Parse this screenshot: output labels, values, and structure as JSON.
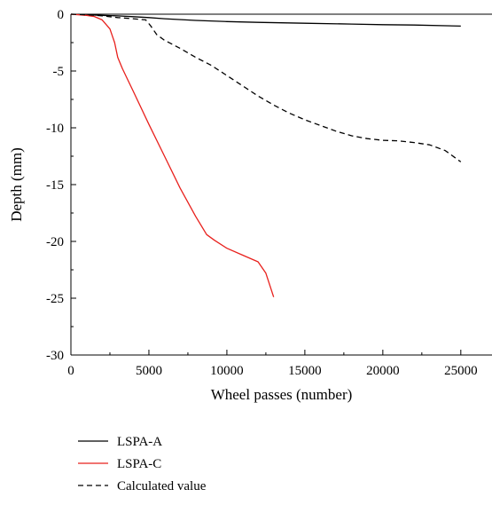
{
  "chart_data": {
    "type": "line",
    "title": "",
    "xlabel": "Wheel passes (number)",
    "ylabel": "Depth (mm)",
    "xlim": [
      0,
      27000
    ],
    "ylim": [
      -30,
      0
    ],
    "x_ticks": [
      0,
      5000,
      10000,
      15000,
      20000,
      25000
    ],
    "y_ticks": [
      0,
      -5,
      -10,
      -15,
      -20,
      -25,
      -30
    ],
    "grid": false,
    "legend_position": "below plot, left",
    "series": [
      {
        "name": "LSPA-A",
        "color": "#000000",
        "dash": "solid",
        "points": [
          [
            0,
            0
          ],
          [
            1000,
            -0.05
          ],
          [
            2000,
            -0.1
          ],
          [
            3000,
            -0.15
          ],
          [
            4000,
            -0.22
          ],
          [
            5000,
            -0.3
          ],
          [
            6000,
            -0.4
          ],
          [
            8000,
            -0.55
          ],
          [
            10000,
            -0.65
          ],
          [
            12000,
            -0.72
          ],
          [
            15000,
            -0.8
          ],
          [
            18000,
            -0.87
          ],
          [
            20000,
            -0.92
          ],
          [
            22000,
            -0.95
          ],
          [
            25000,
            -1.05
          ]
        ]
      },
      {
        "name": "LSPA-C",
        "color": "#e8201c",
        "dash": "solid",
        "points": [
          [
            0,
            0
          ],
          [
            1000,
            -0.1
          ],
          [
            1500,
            -0.2
          ],
          [
            2000,
            -0.5
          ],
          [
            2500,
            -1.3
          ],
          [
            2800,
            -2.5
          ],
          [
            3000,
            -3.8
          ],
          [
            3300,
            -4.8
          ],
          [
            4000,
            -6.8
          ],
          [
            5000,
            -9.7
          ],
          [
            6000,
            -12.5
          ],
          [
            7000,
            -15.3
          ],
          [
            8000,
            -17.8
          ],
          [
            8700,
            -19.4
          ],
          [
            9200,
            -19.9
          ],
          [
            10000,
            -20.6
          ],
          [
            11000,
            -21.2
          ],
          [
            12000,
            -21.8
          ],
          [
            12500,
            -22.8
          ],
          [
            13000,
            -24.9
          ]
        ]
      },
      {
        "name": "Calculated value",
        "color": "#000000",
        "dash": "dashed",
        "points": [
          [
            0,
            0
          ],
          [
            1000,
            -0.05
          ],
          [
            2000,
            -0.15
          ],
          [
            3000,
            -0.3
          ],
          [
            4000,
            -0.4
          ],
          [
            4800,
            -0.5
          ],
          [
            5100,
            -1.0
          ],
          [
            5500,
            -1.8
          ],
          [
            6000,
            -2.3
          ],
          [
            7000,
            -3.0
          ],
          [
            8000,
            -3.8
          ],
          [
            9000,
            -4.5
          ],
          [
            10000,
            -5.4
          ],
          [
            11000,
            -6.3
          ],
          [
            12000,
            -7.2
          ],
          [
            13000,
            -8.0
          ],
          [
            14000,
            -8.7
          ],
          [
            15000,
            -9.3
          ],
          [
            16000,
            -9.8
          ],
          [
            17000,
            -10.3
          ],
          [
            18000,
            -10.7
          ],
          [
            19000,
            -10.95
          ],
          [
            20000,
            -11.1
          ],
          [
            21000,
            -11.15
          ],
          [
            22000,
            -11.3
          ],
          [
            23000,
            -11.5
          ],
          [
            24000,
            -12.0
          ],
          [
            25000,
            -13.0
          ]
        ]
      }
    ]
  }
}
